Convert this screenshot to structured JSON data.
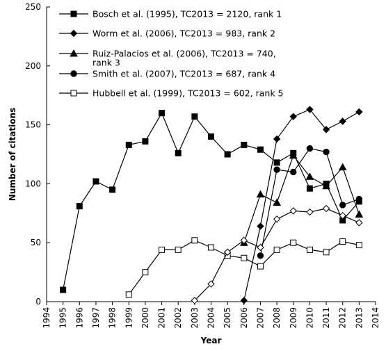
{
  "chart_data": {
    "type": "line",
    "title": "",
    "xlabel": "Year",
    "ylabel": "Number of citations",
    "xlim": [
      1994,
      2014
    ],
    "ylim": [
      0,
      250
    ],
    "x_ticks": [
      1994,
      1995,
      1996,
      1997,
      1998,
      1999,
      2000,
      2001,
      2002,
      2003,
      2004,
      2005,
      2006,
      2007,
      2008,
      2009,
      2010,
      2011,
      2012,
      2013,
      2014
    ],
    "y_ticks": [
      0,
      50,
      100,
      150,
      200,
      250
    ],
    "grid": false,
    "legend_position": "top-left",
    "series": [
      {
        "name": "Bosch et al. (1995), TC2013 = 2120, rank 1",
        "marker": "filled-square",
        "x": [
          1995,
          1996,
          1997,
          1998,
          1999,
          2000,
          2001,
          2002,
          2003,
          2004,
          2005,
          2006,
          2007,
          2008,
          2009,
          2010,
          2011,
          2012,
          2013
        ],
        "values": [
          10,
          81,
          102,
          95,
          133,
          136,
          160,
          126,
          157,
          140,
          125,
          133,
          129,
          118,
          126,
          96,
          100,
          69,
          85
        ]
      },
      {
        "name": "Worm et al. (2006), TC2013 = 983, rank 2",
        "marker": "filled-diamond",
        "x": [
          2006,
          2007,
          2008,
          2009,
          2010,
          2011,
          2012,
          2013
        ],
        "values": [
          1,
          64,
          138,
          157,
          163,
          146,
          153,
          161
        ]
      },
      {
        "name": "Ruiz-Palacios et al. (2006), TC2013 = 740, rank 3",
        "marker": "filled-triangle",
        "x": [
          2006,
          2007,
          2008,
          2009,
          2010,
          2011,
          2012,
          2013
        ],
        "values": [
          50,
          91,
          84,
          124,
          106,
          98,
          114,
          74
        ]
      },
      {
        "name": "Smith et al. (2007), TC2013 = 687, rank 4",
        "marker": "filled-circle",
        "x": [
          2007,
          2008,
          2009,
          2010,
          2011,
          2012,
          2013
        ],
        "values": [
          39,
          112,
          110,
          130,
          127,
          82,
          87
        ]
      },
      {
        "name": "Hubbell et al. (1999), TC2013 = 602, rank 5",
        "marker": "open-square",
        "x": [
          1999,
          2000,
          2001,
          2002,
          2003,
          2004,
          2005,
          2006,
          2007,
          2008,
          2009,
          2010,
          2011,
          2012,
          2013
        ],
        "values": [
          6,
          25,
          44,
          44,
          52,
          46,
          39,
          37,
          30,
          44,
          50,
          44,
          42,
          51,
          48
        ]
      },
      {
        "name": "",
        "marker": "open-diamond",
        "x": [
          2003,
          2004,
          2005,
          2006,
          2007,
          2008,
          2009,
          2010,
          2011,
          2012,
          2013
        ],
        "values": [
          1,
          15,
          42,
          52,
          46,
          70,
          77,
          76,
          79,
          73,
          67
        ]
      }
    ]
  }
}
